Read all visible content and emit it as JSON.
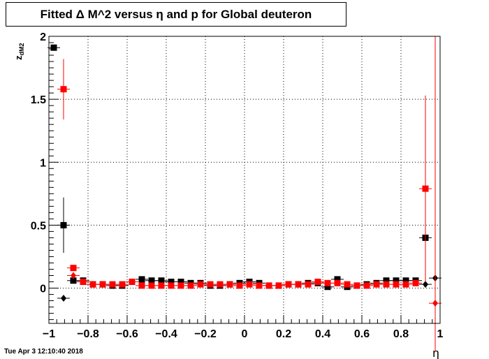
{
  "title": "Fitted Δ M^2 versus η and p for Global deuteron",
  "timestamp": "Tue Apr  3 12:10:40 2018",
  "chart_data": {
    "type": "scatter",
    "title": "Fitted Δ M^2 versus η and p for Global deuteron",
    "xlabel": "η",
    "ylabel": "z_dM2",
    "ylabel_main": "z",
    "ylabel_sub": "dM2",
    "xlim": [
      -1,
      1
    ],
    "ylim": [
      -0.28,
      2
    ],
    "x_ticks": [
      -1,
      -0.8,
      -0.6,
      -0.4,
      -0.2,
      0,
      0.2,
      0.4,
      0.6,
      0.8,
      1
    ],
    "x_tick_labels": [
      "−1",
      "−0.8",
      "−0.6",
      "−0.4",
      "−0.2",
      "0",
      "0.2",
      "0.4",
      "0.6",
      "0.8",
      "1"
    ],
    "y_ticks": [
      0,
      0.5,
      1,
      1.5,
      2
    ],
    "y_tick_labels": [
      "0",
      "0.5",
      "1",
      "1.5",
      "2"
    ],
    "grid": true,
    "series": [
      {
        "color": "#000000",
        "points": [
          {
            "x": -0.975,
            "y": 1.91,
            "err": 0.01,
            "marker": "square"
          },
          {
            "x": -0.925,
            "y": 0.5,
            "err": 0.22,
            "marker": "square"
          },
          {
            "x": -0.925,
            "y": -0.08,
            "err": 0.01,
            "marker": "diamond"
          },
          {
            "x": -0.875,
            "y": 0.06,
            "err": 0.01,
            "marker": "square"
          },
          {
            "x": -0.825,
            "y": 0.06,
            "err": 0.01,
            "marker": "square"
          },
          {
            "x": -0.775,
            "y": 0.03,
            "err": 0.01,
            "marker": "square"
          },
          {
            "x": -0.725,
            "y": 0.03,
            "err": 0.01,
            "marker": "square"
          },
          {
            "x": -0.675,
            "y": 0.02,
            "err": 0.01,
            "marker": "square"
          },
          {
            "x": -0.625,
            "y": 0.02,
            "err": 0.01,
            "marker": "square"
          },
          {
            "x": -0.575,
            "y": 0.05,
            "err": 0.01,
            "marker": "square"
          },
          {
            "x": -0.525,
            "y": 0.07,
            "err": 0.01,
            "marker": "square"
          },
          {
            "x": -0.475,
            "y": 0.06,
            "err": 0.01,
            "marker": "square"
          },
          {
            "x": -0.425,
            "y": 0.06,
            "err": 0.01,
            "marker": "square"
          },
          {
            "x": -0.375,
            "y": 0.05,
            "err": 0.01,
            "marker": "square"
          },
          {
            "x": -0.325,
            "y": 0.05,
            "err": 0.01,
            "marker": "square"
          },
          {
            "x": -0.275,
            "y": 0.04,
            "err": 0.01,
            "marker": "square"
          },
          {
            "x": -0.225,
            "y": 0.04,
            "err": 0.01,
            "marker": "square"
          },
          {
            "x": -0.175,
            "y": 0.02,
            "err": 0.01,
            "marker": "square"
          },
          {
            "x": -0.125,
            "y": 0.02,
            "err": 0.01,
            "marker": "square"
          },
          {
            "x": -0.075,
            "y": 0.03,
            "err": 0.01,
            "marker": "square"
          },
          {
            "x": -0.025,
            "y": 0.04,
            "err": 0.01,
            "marker": "square"
          },
          {
            "x": 0.025,
            "y": 0.05,
            "err": 0.01,
            "marker": "square"
          },
          {
            "x": 0.075,
            "y": 0.04,
            "err": 0.01,
            "marker": "square"
          },
          {
            "x": 0.125,
            "y": 0.02,
            "err": 0.01,
            "marker": "square"
          },
          {
            "x": 0.175,
            "y": 0.02,
            "err": 0.01,
            "marker": "square"
          },
          {
            "x": 0.225,
            "y": 0.03,
            "err": 0.01,
            "marker": "square"
          },
          {
            "x": 0.275,
            "y": 0.03,
            "err": 0.01,
            "marker": "square"
          },
          {
            "x": 0.325,
            "y": 0.04,
            "err": 0.01,
            "marker": "square"
          },
          {
            "x": 0.375,
            "y": 0.04,
            "err": 0.01,
            "marker": "square"
          },
          {
            "x": 0.425,
            "y": 0.01,
            "err": 0.01,
            "marker": "square"
          },
          {
            "x": 0.475,
            "y": 0.07,
            "err": 0.01,
            "marker": "square"
          },
          {
            "x": 0.525,
            "y": 0.01,
            "err": 0.01,
            "marker": "square"
          },
          {
            "x": 0.575,
            "y": 0.02,
            "err": 0.01,
            "marker": "square"
          },
          {
            "x": 0.625,
            "y": 0.03,
            "err": 0.01,
            "marker": "square"
          },
          {
            "x": 0.675,
            "y": 0.04,
            "err": 0.01,
            "marker": "square"
          },
          {
            "x": 0.725,
            "y": 0.06,
            "err": 0.01,
            "marker": "square"
          },
          {
            "x": 0.775,
            "y": 0.06,
            "err": 0.01,
            "marker": "square"
          },
          {
            "x": 0.825,
            "y": 0.06,
            "err": 0.01,
            "marker": "square"
          },
          {
            "x": 0.875,
            "y": 0.06,
            "err": 0.01,
            "marker": "square"
          },
          {
            "x": 0.925,
            "y": 0.4,
            "err": 0.09,
            "marker": "square"
          },
          {
            "x": 0.925,
            "y": 0.03,
            "err": 0.01,
            "marker": "diamond"
          },
          {
            "x": 0.975,
            "y": 0.08,
            "err": 0.01,
            "marker": "diamond"
          }
        ]
      },
      {
        "color": "#ff0000",
        "points": [
          {
            "x": -0.925,
            "y": 1.58,
            "err": 0.24,
            "marker": "square"
          },
          {
            "x": -0.875,
            "y": 0.16,
            "err": 0.01,
            "marker": "square"
          },
          {
            "x": -0.875,
            "y": 0.1,
            "err": 0.01,
            "marker": "diamond"
          },
          {
            "x": -0.825,
            "y": 0.05,
            "err": 0.01,
            "marker": "square"
          },
          {
            "x": -0.775,
            "y": 0.03,
            "err": 0.01,
            "marker": "square"
          },
          {
            "x": -0.725,
            "y": 0.03,
            "err": 0.01,
            "marker": "square"
          },
          {
            "x": -0.675,
            "y": 0.03,
            "err": 0.01,
            "marker": "square"
          },
          {
            "x": -0.625,
            "y": 0.03,
            "err": 0.01,
            "marker": "square"
          },
          {
            "x": -0.575,
            "y": 0.05,
            "err": 0.01,
            "marker": "square"
          },
          {
            "x": -0.525,
            "y": 0.02,
            "err": 0.01,
            "marker": "square"
          },
          {
            "x": -0.475,
            "y": 0.02,
            "err": 0.01,
            "marker": "square"
          },
          {
            "x": -0.425,
            "y": 0.02,
            "err": 0.01,
            "marker": "square"
          },
          {
            "x": -0.375,
            "y": 0.02,
            "err": 0.01,
            "marker": "square"
          },
          {
            "x": -0.325,
            "y": 0.02,
            "err": 0.01,
            "marker": "square"
          },
          {
            "x": -0.275,
            "y": 0.02,
            "err": 0.01,
            "marker": "square"
          },
          {
            "x": -0.225,
            "y": 0.03,
            "err": 0.01,
            "marker": "square"
          },
          {
            "x": -0.175,
            "y": 0.03,
            "err": 0.01,
            "marker": "square"
          },
          {
            "x": -0.125,
            "y": 0.03,
            "err": 0.01,
            "marker": "square"
          },
          {
            "x": -0.075,
            "y": 0.03,
            "err": 0.01,
            "marker": "square"
          },
          {
            "x": -0.025,
            "y": 0.02,
            "err": 0.01,
            "marker": "square"
          },
          {
            "x": 0.025,
            "y": 0.03,
            "err": 0.01,
            "marker": "square"
          },
          {
            "x": 0.075,
            "y": 0.02,
            "err": 0.01,
            "marker": "square"
          },
          {
            "x": 0.125,
            "y": 0.02,
            "err": 0.01,
            "marker": "square"
          },
          {
            "x": 0.175,
            "y": 0.02,
            "err": 0.01,
            "marker": "square"
          },
          {
            "x": 0.225,
            "y": 0.03,
            "err": 0.01,
            "marker": "square"
          },
          {
            "x": 0.275,
            "y": 0.03,
            "err": 0.01,
            "marker": "square"
          },
          {
            "x": 0.325,
            "y": 0.03,
            "err": 0.01,
            "marker": "square"
          },
          {
            "x": 0.375,
            "y": 0.05,
            "err": 0.01,
            "marker": "square"
          },
          {
            "x": 0.425,
            "y": 0.04,
            "err": 0.01,
            "marker": "square"
          },
          {
            "x": 0.475,
            "y": 0.04,
            "err": 0.01,
            "marker": "square"
          },
          {
            "x": 0.525,
            "y": 0.03,
            "err": 0.01,
            "marker": "square"
          },
          {
            "x": 0.575,
            "y": 0.02,
            "err": 0.01,
            "marker": "square"
          },
          {
            "x": 0.625,
            "y": 0.02,
            "err": 0.01,
            "marker": "square"
          },
          {
            "x": 0.675,
            "y": 0.03,
            "err": 0.01,
            "marker": "square"
          },
          {
            "x": 0.725,
            "y": 0.03,
            "err": 0.01,
            "marker": "square"
          },
          {
            "x": 0.775,
            "y": 0.03,
            "err": 0.01,
            "marker": "square"
          },
          {
            "x": 0.825,
            "y": 0.03,
            "err": 0.01,
            "marker": "square"
          },
          {
            "x": 0.875,
            "y": 0.04,
            "err": 0.01,
            "marker": "square"
          },
          {
            "x": 0.925,
            "y": 0.79,
            "err": 0.74,
            "marker": "square"
          },
          {
            "x": 0.975,
            "y": -0.12,
            "err": 2.4,
            "marker": "diamond"
          }
        ]
      }
    ]
  }
}
